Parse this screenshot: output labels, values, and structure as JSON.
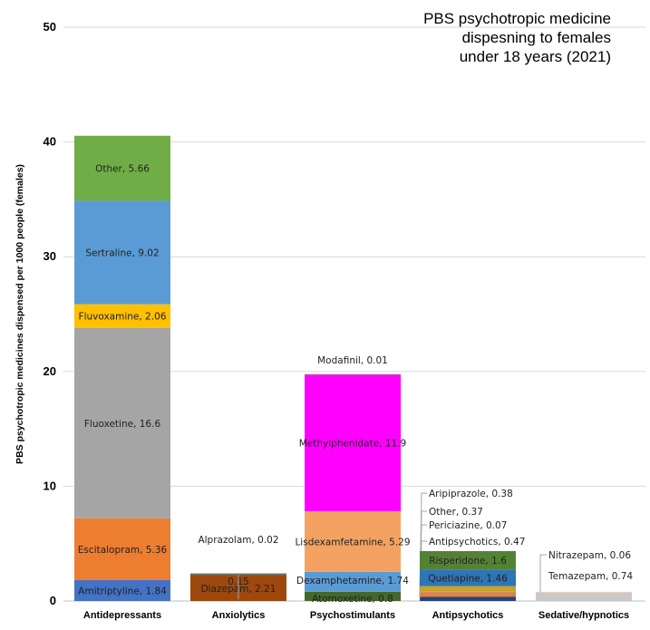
{
  "chart_data": {
    "type": "bar",
    "stacked": true,
    "title": [
      "PBS psychotropic medicine",
      "dispesning to females",
      "under 18 years (2021)"
    ],
    "ylabel": "PBS psychotropic medicines dispensed per 1000 people (females)",
    "xlabel": "",
    "ylim": [
      0,
      50
    ],
    "yticks": [
      0,
      10,
      20,
      30,
      40,
      50
    ],
    "grid": true,
    "categories": [
      "Antidepressants",
      "Anxiolytics",
      "Psychostimulants",
      "Antipsychotics",
      "Sedative/hypnotics"
    ],
    "stacks": [
      {
        "category": "Antidepressants",
        "segments": [
          {
            "label": "Amitriptyline, 1.84",
            "value": 1.84,
            "color": "#4472c4"
          },
          {
            "label": "Escitalopram, 5.36",
            "value": 5.36,
            "color": "#ed7d31"
          },
          {
            "label": "Fluoxetine, 16.6",
            "value": 16.6,
            "color": "#a5a5a5"
          },
          {
            "label": "Fluvoxamine, 2.06",
            "value": 2.06,
            "color": "#ffc000"
          },
          {
            "label": "Sertraline, 9.02",
            "value": 9.02,
            "color": "#5b9bd5"
          },
          {
            "label": "Other, 5.66",
            "value": 5.66,
            "color": "#70ad47"
          }
        ]
      },
      {
        "category": "Anxiolytics",
        "segments": [
          {
            "label": "Diazepam, 2.21",
            "value": 2.21,
            "color": "#9e480e"
          },
          {
            "label": "0.15",
            "value": 0.15,
            "color": "#636363"
          },
          {
            "label": "Alprazolam, 0.02",
            "value": 0.02,
            "color": "#997300"
          }
        ]
      },
      {
        "category": "Psychostimulants",
        "segments": [
          {
            "label": "Atomoxetine, 0.8",
            "value": 0.8,
            "color": "#43682b"
          },
          {
            "label": "Dexamphetamine, 1.74",
            "value": 1.74,
            "color": "#5b9bd5"
          },
          {
            "label": "Lisdexamfetamine, 5.29",
            "value": 5.29,
            "color": "#f4a261"
          },
          {
            "label": "Methylphenidate, 11.9",
            "value": 11.9,
            "color": "#ff00ff"
          },
          {
            "label": "Modafinil, 0.01",
            "value": 0.01,
            "color": "#70ad47"
          }
        ]
      },
      {
        "category": "Antipsychotics",
        "segments": [
          {
            "label": "Aripiprazole, 0.38",
            "value": 0.38,
            "color": "#264478"
          },
          {
            "label": "Other, 0.37",
            "value": 0.37,
            "color": "#ed7d31"
          },
          {
            "label": "Periciazine, 0.07",
            "value": 0.07,
            "color": "#a5a5a5"
          },
          {
            "label": "Antipsychotics, 0.47",
            "value": 0.47,
            "color": "#c9a227"
          },
          {
            "label": "Quetiapine, 1.46",
            "value": 1.46,
            "color": "#2e75b6"
          },
          {
            "label": "Risperidone, 1.6",
            "value": 1.6,
            "color": "#548235"
          }
        ]
      },
      {
        "category": "Sedative/hypnotics",
        "segments": [
          {
            "label": "Temazepam, 0.74",
            "value": 0.74,
            "color": "#c9c9c9"
          },
          {
            "label": "Nitrazepam, 0.06",
            "value": 0.06,
            "color": "#f8cbad"
          }
        ]
      }
    ]
  }
}
